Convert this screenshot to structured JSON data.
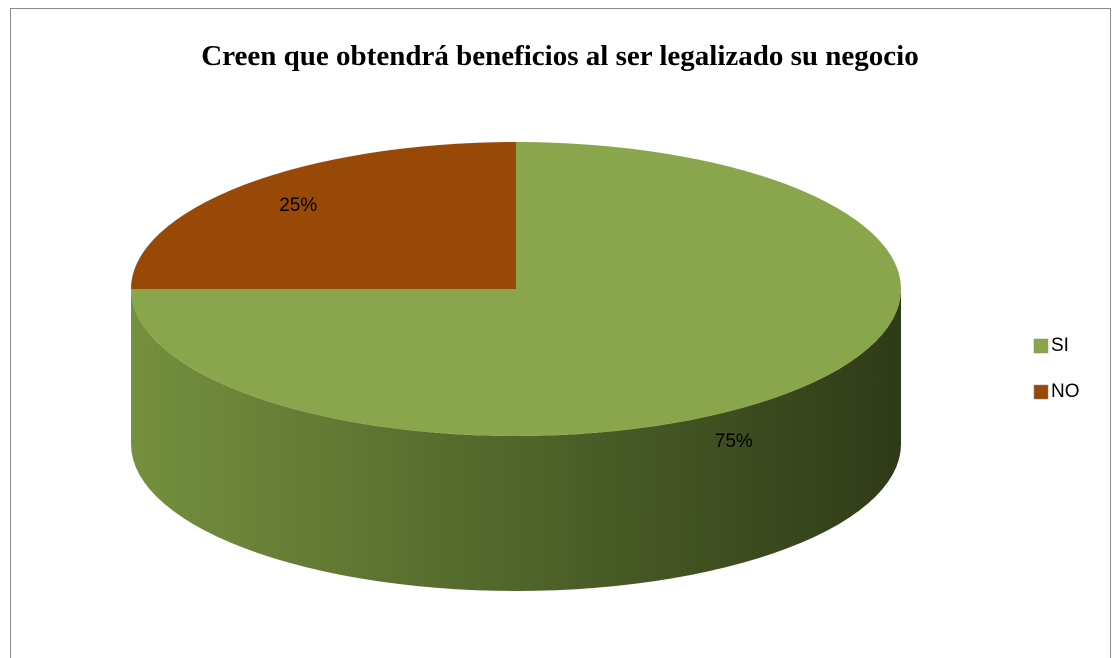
{
  "chart_data": {
    "type": "pie",
    "title": "Creen que obtendrá beneficios al ser legalizado su negocio",
    "categories": [
      "SI",
      "NO"
    ],
    "values": [
      75,
      25
    ],
    "value_labels": [
      "75%",
      "25%"
    ],
    "colors": [
      "#8aa64c",
      "#984807"
    ],
    "legend": "right"
  }
}
